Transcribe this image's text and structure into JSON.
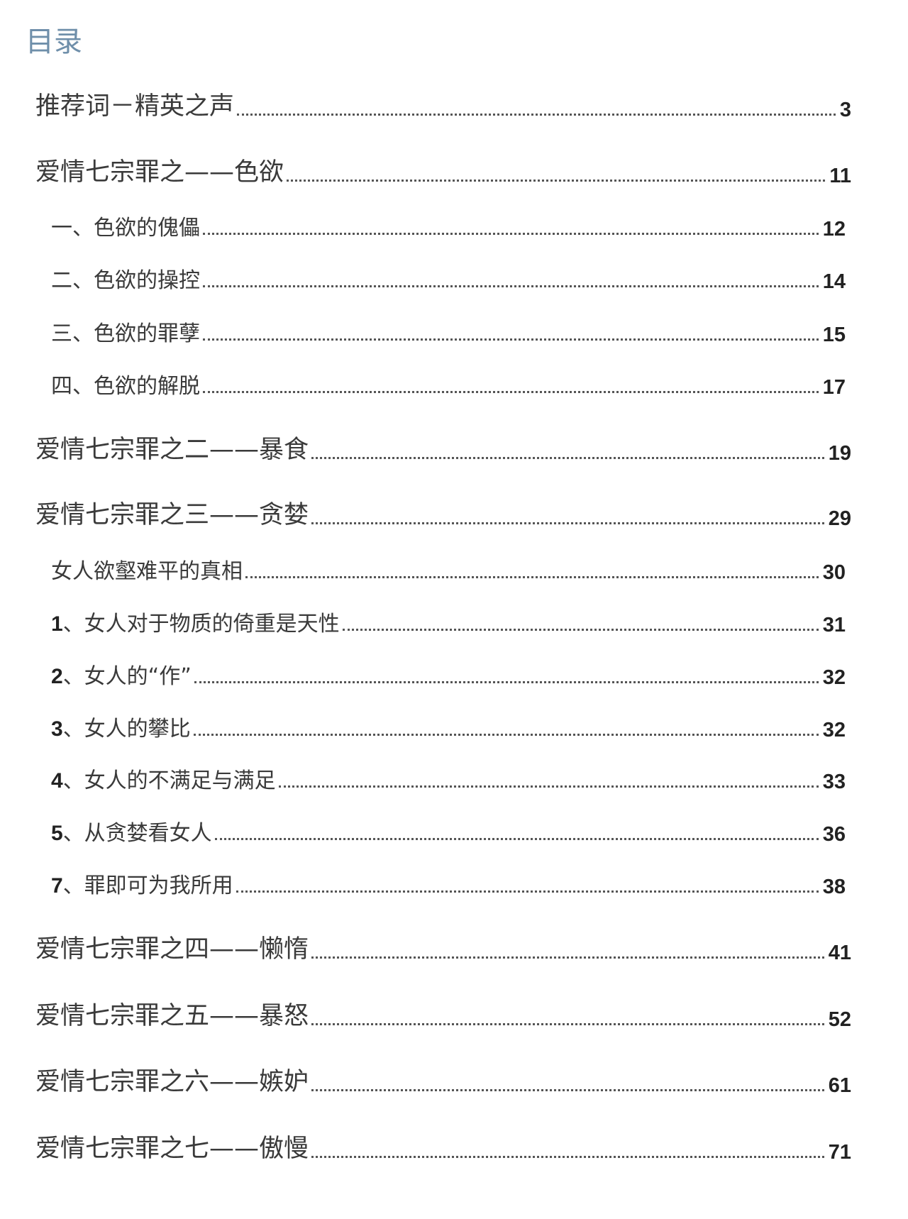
{
  "title": "目录",
  "entries": [
    {
      "level": "main",
      "label": "推荐词－精英之声",
      "page": "3"
    },
    {
      "level": "main",
      "label": "爱情七宗罪之——色欲",
      "page": "11"
    },
    {
      "level": "sub",
      "label": "一、色欲的傀儡",
      "page": "12"
    },
    {
      "level": "sub",
      "label": "二、色欲的操控",
      "page": "14"
    },
    {
      "level": "sub",
      "label": "三、色欲的罪孽",
      "page": "15"
    },
    {
      "level": "sub",
      "label": "四、色欲的解脱",
      "page": "17"
    },
    {
      "level": "main",
      "label": "爱情七宗罪之二——暴食",
      "page": "19"
    },
    {
      "level": "main",
      "label": "爱情七宗罪之三——贪婪",
      "page": "29"
    },
    {
      "level": "sub",
      "label": "女人欲壑难平的真相",
      "page": "30"
    },
    {
      "level": "sub",
      "num": "1",
      "label": "、女人对于物质的倚重是天性",
      "page": "31"
    },
    {
      "level": "sub",
      "num": "2",
      "label": "、女人的“作”",
      "page": "32"
    },
    {
      "level": "sub",
      "num": "3",
      "label": "、女人的攀比",
      "page": "32"
    },
    {
      "level": "sub",
      "num": "4",
      "label": "、女人的不满足与满足",
      "page": "33"
    },
    {
      "level": "sub",
      "num": "5",
      "label": "、从贪婪看女人",
      "page": "36"
    },
    {
      "level": "sub",
      "num": "7",
      "label": "、罪即可为我所用",
      "page": "38"
    },
    {
      "level": "main",
      "label": "爱情七宗罪之四——懒惰",
      "page": "41"
    },
    {
      "level": "main",
      "label": "爱情七宗罪之五——暴怒",
      "page": "52"
    },
    {
      "level": "main",
      "label": "爱情七宗罪之六——嫉妒",
      "page": "61"
    },
    {
      "level": "main",
      "label": "爱情七宗罪之七——傲慢",
      "page": "71"
    }
  ]
}
